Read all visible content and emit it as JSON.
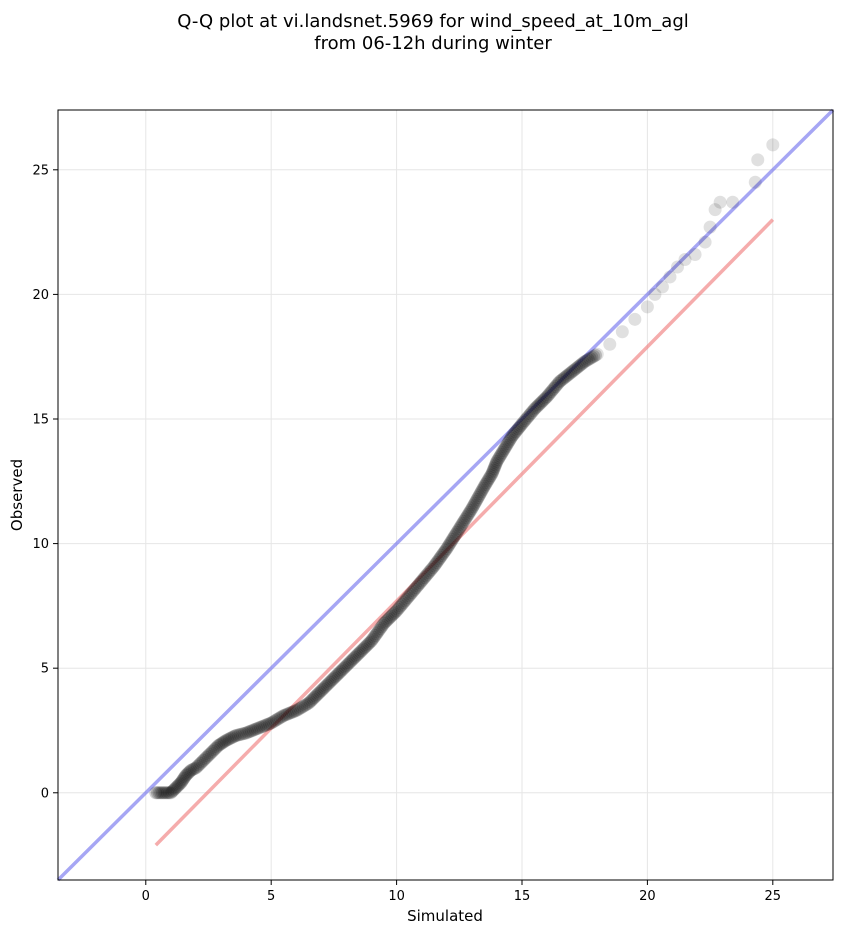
{
  "chart_data": {
    "type": "scatter",
    "title": [
      "Q-Q plot at vi.landsnet.5969 for wind_speed_at_10m_agl",
      "from 06-12h during winter"
    ],
    "xlabel": "Simulated",
    "ylabel": "Observed",
    "xlim": [
      -3.5,
      27.4
    ],
    "ylim": [
      -3.5,
      27.4
    ],
    "xticks": [
      0,
      5,
      10,
      15,
      20,
      25
    ],
    "yticks": [
      0,
      5,
      10,
      15,
      20,
      25
    ],
    "grid": true,
    "points_color": "#000000",
    "series": [
      {
        "name": "",
        "type": "scatter",
        "x": [
          0.4,
          0.6,
          0.8,
          1.0,
          1.2,
          1.4,
          1.6,
          1.8,
          2.0,
          2.3,
          2.6,
          2.9,
          3.2,
          3.6,
          4.0,
          4.5,
          5.0,
          5.5,
          6.0,
          6.5,
          7.0,
          7.5,
          8.0,
          8.5,
          9.0,
          9.5,
          10.0,
          10.5,
          11.0,
          11.5,
          12.0,
          12.5,
          13.0,
          13.5,
          13.8,
          14.0,
          14.3,
          14.6,
          15.0,
          15.5,
          16.0,
          16.5,
          17.0,
          17.5,
          18.0,
          18.5,
          19.0,
          19.5,
          20.0,
          20.3,
          20.6,
          20.9,
          21.2,
          21.5,
          21.9,
          22.3,
          22.5,
          22.7,
          22.9,
          23.4,
          24.3,
          24.4,
          25.0
        ],
        "y": [
          0.0,
          0.0,
          0.0,
          0.0,
          0.2,
          0.4,
          0.7,
          0.9,
          1.0,
          1.3,
          1.6,
          1.9,
          2.1,
          2.3,
          2.4,
          2.6,
          2.8,
          3.1,
          3.3,
          3.6,
          4.1,
          4.6,
          5.1,
          5.6,
          6.1,
          6.8,
          7.3,
          7.9,
          8.5,
          9.1,
          9.8,
          10.6,
          11.4,
          12.3,
          12.8,
          13.3,
          13.8,
          14.3,
          14.8,
          15.4,
          15.9,
          16.5,
          16.9,
          17.3,
          17.6,
          18.0,
          18.5,
          19.0,
          19.5,
          20.0,
          20.3,
          20.7,
          21.1,
          21.4,
          21.6,
          22.1,
          22.7,
          23.4,
          23.7,
          23.7,
          24.5,
          25.4,
          26.0
        ]
      },
      {
        "name": "",
        "type": "line",
        "color": "#7777ee",
        "x": [
          -3.5,
          27.4
        ],
        "y": [
          -3.5,
          27.4
        ]
      },
      {
        "name": "",
        "type": "line",
        "color": "#f08080",
        "x": [
          0.4,
          25.0
        ],
        "y": [
          -2.1,
          23.0
        ]
      }
    ]
  }
}
